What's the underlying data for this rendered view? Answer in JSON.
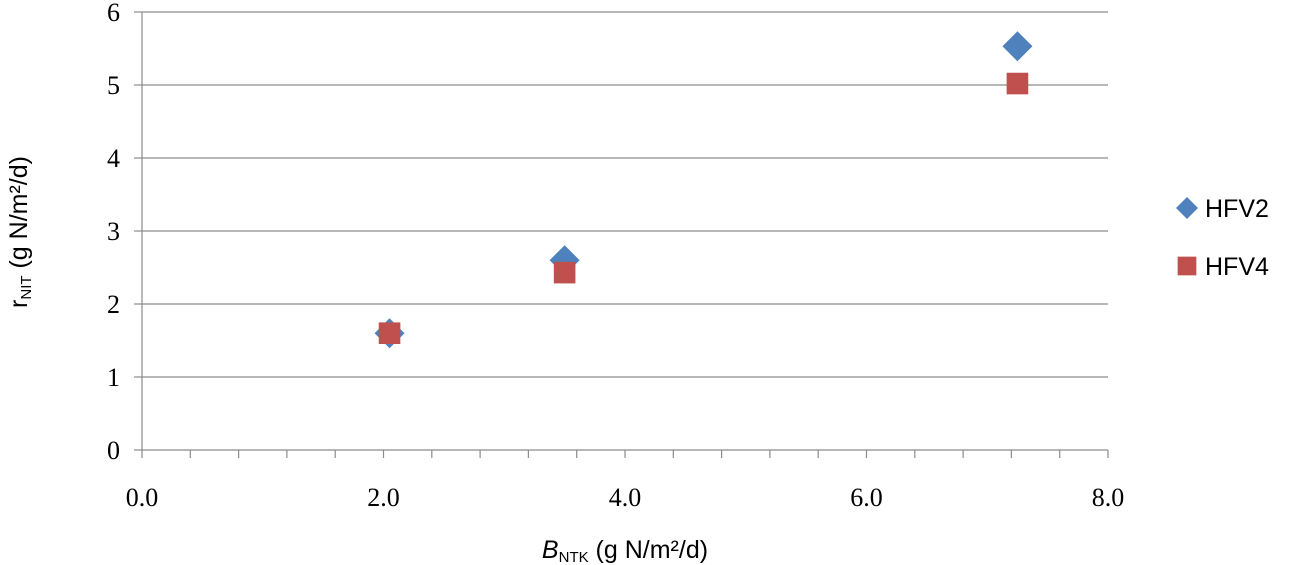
{
  "chart_data": {
    "type": "scatter",
    "xlabel": {
      "main": "B",
      "sub": "NTK",
      "rest": " (g N/m²/d)"
    },
    "ylabel": {
      "main": "r",
      "sub": "NIT",
      "rest": " (g N/m²/d)"
    },
    "xlim": [
      0,
      8
    ],
    "ylim": [
      0,
      6
    ],
    "x_ticks": [
      "0.0",
      "2.0",
      "4.0",
      "6.0",
      "8.0"
    ],
    "y_ticks": [
      "0",
      "1",
      "2",
      "3",
      "4",
      "5",
      "6"
    ],
    "x_minor_step": 0.4,
    "grid": "horizontal",
    "legend_position": "right",
    "series": [
      {
        "name": "HFV2",
        "marker": "diamond",
        "color": "#4F81BD",
        "points": [
          {
            "x": 2.05,
            "y": 1.6
          },
          {
            "x": 3.5,
            "y": 2.6
          },
          {
            "x": 7.25,
            "y": 5.53
          }
        ]
      },
      {
        "name": "HFV4",
        "marker": "square",
        "color": "#C0504D",
        "points": [
          {
            "x": 2.05,
            "y": 1.6
          },
          {
            "x": 3.5,
            "y": 2.43
          },
          {
            "x": 7.25,
            "y": 5.02
          }
        ]
      }
    ]
  }
}
